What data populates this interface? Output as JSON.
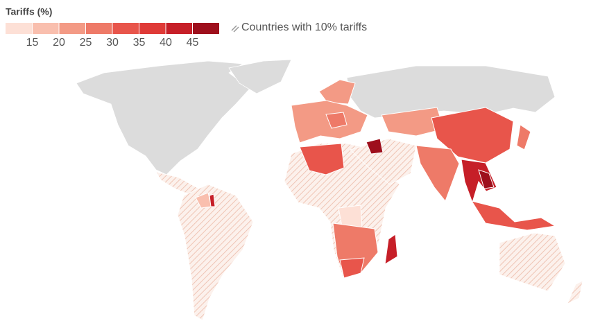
{
  "legend": {
    "title": "Tariffs (%)",
    "colors": [
      "#fde0d6",
      "#f9bfae",
      "#f39a85",
      "#ee7a68",
      "#e8554b",
      "#df3a37",
      "#c61f28",
      "#9e0f1c"
    ],
    "ticks": [
      15,
      20,
      25,
      30,
      35,
      40,
      45
    ],
    "hatch_label": "Countries with 10% tariffs"
  }
}
